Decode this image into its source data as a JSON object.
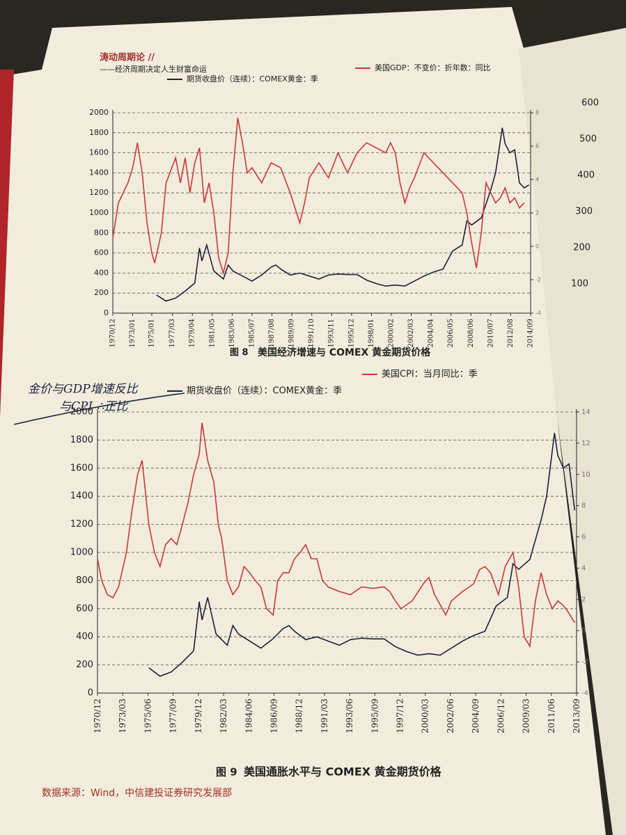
{
  "header": {
    "title": "涛动周期论 //",
    "subtitle": "——经济周期决定人生财富命运"
  },
  "note": {
    "line1": "金价与GDP增速反比",
    "line2": "与CPI ∴正比"
  },
  "right_page": {
    "ticks": [
      "600",
      "500",
      "400",
      "300",
      "200",
      "100"
    ]
  },
  "chart_data": [
    {
      "type": "line",
      "figure_label": "图 8",
      "title": "美国经济增速与 COMEX 黄金期货价格",
      "xlim": [
        1970.92,
        2014.67
      ],
      "xticks": [
        {
          "value": 1970.92,
          "label": "1970/12"
        },
        {
          "value": 1973.0,
          "label": "1973/01"
        },
        {
          "value": 1975.0,
          "label": "1975/01"
        },
        {
          "value": 1977.17,
          "label": "1977/03"
        },
        {
          "value": 1979.25,
          "label": "1979/04"
        },
        {
          "value": 1981.33,
          "label": "1981/05"
        },
        {
          "value": 1983.42,
          "label": "1983/06"
        },
        {
          "value": 1985.5,
          "label": "1985/07"
        },
        {
          "value": 1987.58,
          "label": "1987/08"
        },
        {
          "value": 1989.67,
          "label": "1989/09"
        },
        {
          "value": 1991.75,
          "label": "1991/10"
        },
        {
          "value": 1993.83,
          "label": "1993/11"
        },
        {
          "value": 1995.92,
          "label": "1995/12"
        },
        {
          "value": 1998.0,
          "label": "1998/01"
        },
        {
          "value": 2000.08,
          "label": "2000/02"
        },
        {
          "value": 2002.17,
          "label": "2002/03"
        },
        {
          "value": 2004.25,
          "label": "2004/04"
        },
        {
          "value": 2006.33,
          "label": "2006/05"
        },
        {
          "value": 2008.42,
          "label": "2008/06"
        },
        {
          "value": 2010.5,
          "label": "2010/07"
        },
        {
          "value": 2012.58,
          "label": "2012/08"
        },
        {
          "value": 2014.67,
          "label": "2014/09"
        }
      ],
      "ylim": [
        0,
        2000
      ],
      "yticks": [
        0,
        200,
        400,
        600,
        800,
        1000,
        1200,
        1400,
        1600,
        1800,
        2000
      ],
      "y2lim": [
        -4,
        8
      ],
      "y2ticks": [
        -4,
        -2,
        0,
        2,
        4,
        6,
        8
      ],
      "grid": true,
      "series": [
        {
          "name": "期货收盘价（连续）：COMEX黄金：季",
          "color": "#1e1f3a",
          "x": [
            1975.5,
            1976.5,
            1977.5,
            1978.5,
            1979.5,
            1980.0,
            1980.25,
            1980.75,
            1981.5,
            1982.5,
            1983.0,
            1983.5,
            1984.5,
            1985.5,
            1986.5,
            1987.5,
            1988.0,
            1988.5,
            1989.5,
            1990.5,
            1991.5,
            1992.5,
            1993.5,
            1994.5,
            1995.5,
            1996.5,
            1997.5,
            1998.5,
            1999.5,
            2000.5,
            2001.5,
            2002.5,
            2003.5,
            2004.5,
            2005.5,
            2006.5,
            2007.5,
            2008.0,
            2008.5,
            2009.5,
            2010.5,
            2011.0,
            2011.7,
            2012.0,
            2012.5,
            2013.0,
            2013.5,
            2014.0,
            2014.5
          ],
          "values": [
            180,
            120,
            150,
            220,
            300,
            650,
            520,
            680,
            420,
            340,
            480,
            420,
            370,
            320,
            380,
            460,
            480,
            440,
            380,
            400,
            370,
            340,
            380,
            390,
            385,
            385,
            330,
            295,
            270,
            280,
            270,
            320,
            370,
            410,
            440,
            620,
            680,
            920,
            880,
            950,
            1230,
            1400,
            1850,
            1690,
            1600,
            1630,
            1300,
            1250,
            1280
          ]
        },
        {
          "name": "美国GDP：不变价：折年数：同比",
          "color": "#c8383a",
          "axis": "y2",
          "x": [
            1970.92,
            1971.5,
            1972.5,
            1973.0,
            1973.5,
            1974.0,
            1974.5,
            1975.0,
            1975.3,
            1976.0,
            1976.5,
            1977.5,
            1978.0,
            1978.5,
            1979.0,
            1979.5,
            1980.0,
            1980.5,
            1981.0,
            1981.5,
            1982.0,
            1982.5,
            1983.0,
            1983.5,
            1984.0,
            1984.5,
            1985.0,
            1985.5,
            1986.5,
            1987.5,
            1988.5,
            1989.5,
            1990.5,
            1991.0,
            1991.5,
            1992.5,
            1993.5,
            1994.5,
            1995.5,
            1996.5,
            1997.5,
            1998.5,
            1999.5,
            2000.0,
            2000.5,
            2001.0,
            2001.5,
            2002.0,
            2002.5,
            2003.5,
            2004.0,
            2004.5,
            2005.5,
            2006.5,
            2007.5,
            2008.0,
            2008.5,
            2009.0,
            2009.5,
            2010.0,
            2010.5,
            2011.0,
            2011.5,
            2012.0,
            2012.5,
            2013.0,
            2013.5,
            2014.0
          ],
          "values": [
            0.5,
            2.6,
            3.8,
            4.7,
            6.2,
            4.4,
            1.4,
            -0.4,
            -1,
            0.8,
            3.8,
            5.3,
            3.8,
            5.3,
            3.2,
            5,
            5.9,
            2.6,
            3.8,
            2,
            -0.7,
            -1.6,
            -0.4,
            4.4,
            7.7,
            6.2,
            4.4,
            4.7,
            3.8,
            5,
            4.7,
            3.2,
            1.4,
            2.6,
            4.1,
            5,
            4.1,
            5.6,
            4.4,
            5.6,
            6.2,
            5.9,
            5.6,
            6.2,
            5.6,
            3.8,
            2.6,
            3.5,
            4.1,
            5.6,
            5.3,
            5,
            4.4,
            3.8,
            3.2,
            2,
            0.2,
            -1.3,
            0.8,
            3.8,
            3.2,
            2.6,
            2.9,
            3.5,
            2.6,
            2.9,
            2.3,
            2.6
          ]
        }
      ]
    },
    {
      "type": "line",
      "figure_label": "图 9",
      "title": "美国通胀水平与 COMEX 黄金期货价格",
      "xlim": [
        1970.92,
        2013.67
      ],
      "xticks": [
        {
          "value": 1970.92,
          "label": "1970/12"
        },
        {
          "value": 1973.17,
          "label": "1973/03"
        },
        {
          "value": 1975.42,
          "label": "1975/06"
        },
        {
          "value": 1977.67,
          "label": "1977/09"
        },
        {
          "value": 1979.92,
          "label": "1979/12"
        },
        {
          "value": 1982.17,
          "label": "1982/03"
        },
        {
          "value": 1984.42,
          "label": "1984/06"
        },
        {
          "value": 1986.67,
          "label": "1986/09"
        },
        {
          "value": 1988.92,
          "label": "1988/12"
        },
        {
          "value": 1991.17,
          "label": "1991/03"
        },
        {
          "value": 1993.42,
          "label": "1993/06"
        },
        {
          "value": 1995.67,
          "label": "1995/09"
        },
        {
          "value": 1997.92,
          "label": "1997/12"
        },
        {
          "value": 2000.17,
          "label": "2000/03"
        },
        {
          "value": 2002.42,
          "label": "2002/06"
        },
        {
          "value": 2004.67,
          "label": "2004/09"
        },
        {
          "value": 2006.92,
          "label": "2006/12"
        },
        {
          "value": 2009.17,
          "label": "2009/03"
        },
        {
          "value": 2011.42,
          "label": "2011/06"
        },
        {
          "value": 2013.67,
          "label": "2013/09"
        }
      ],
      "ylim": [
        0,
        2000
      ],
      "yticks": [
        0,
        200,
        400,
        600,
        800,
        1000,
        1200,
        1400,
        1600,
        1800,
        2000
      ],
      "y2lim": [
        -4,
        14
      ],
      "y2ticks": [
        -4,
        -2,
        0,
        2,
        4,
        6,
        8,
        10,
        12,
        14
      ],
      "grid": true,
      "series": [
        {
          "name": "期货收盘价（连续）：COMEX黄金：季",
          "color": "#1e1f3a",
          "x": [
            1975.5,
            1976.5,
            1977.5,
            1978.5,
            1979.5,
            1980.0,
            1980.25,
            1980.75,
            1981.5,
            1982.5,
            1983.0,
            1983.5,
            1984.5,
            1985.5,
            1986.5,
            1987.5,
            1988.0,
            1988.5,
            1989.5,
            1990.5,
            1991.5,
            1992.5,
            1993.5,
            1994.5,
            1995.5,
            1996.5,
            1997.5,
            1998.5,
            1999.5,
            2000.5,
            2001.5,
            2002.5,
            2003.5,
            2004.5,
            2005.5,
            2006.5,
            2007.5,
            2008.0,
            2008.5,
            2009.5,
            2010.5,
            2011.0,
            2011.7,
            2012.0,
            2012.5,
            2013.0,
            2013.5
          ],
          "values": [
            180,
            120,
            150,
            220,
            300,
            650,
            520,
            680,
            420,
            340,
            480,
            420,
            370,
            320,
            380,
            460,
            480,
            440,
            380,
            400,
            370,
            340,
            380,
            390,
            385,
            385,
            330,
            295,
            270,
            280,
            270,
            320,
            370,
            410,
            440,
            620,
            680,
            920,
            880,
            950,
            1230,
            1400,
            1850,
            1690,
            1600,
            1630,
            1300
          ]
        },
        {
          "name": "美国CPI：当月同比：季",
          "color": "#c8383a",
          "axis": "y2",
          "x": [
            1970.92,
            1971.3,
            1971.8,
            1972.3,
            1972.8,
            1973.5,
            1974.0,
            1974.5,
            1974.9,
            1975.5,
            1976.0,
            1976.5,
            1977.0,
            1977.5,
            1978.0,
            1978.5,
            1979.0,
            1979.5,
            1980.0,
            1980.25,
            1980.75,
            1981.3,
            1981.7,
            1982.0,
            1982.5,
            1983.0,
            1983.5,
            1984.0,
            1984.5,
            1985.0,
            1985.5,
            1986.0,
            1986.6,
            1987.0,
            1987.5,
            1988.0,
            1988.5,
            1989.0,
            1989.5,
            1990.0,
            1990.5,
            1991.0,
            1991.5,
            1992.5,
            1993.5,
            1994.5,
            1995.5,
            1996.5,
            1997.0,
            1997.5,
            1998.0,
            1999.0,
            2000.0,
            2000.5,
            2001.0,
            2002.0,
            2002.5,
            2003.5,
            2004.5,
            2005.0,
            2005.5,
            2006.0,
            2006.7,
            2007.3,
            2008.0,
            2008.5,
            2009.0,
            2009.5,
            2010.0,
            2010.5,
            2011.0,
            2011.5,
            2012.0,
            2012.5,
            2013.0,
            2013.5
          ],
          "values": [
            4.6,
            3.2,
            2.3,
            2.1,
            2.8,
            5,
            7.7,
            10,
            10.9,
            6.8,
            5,
            4.1,
            5.5,
            5.9,
            5.5,
            6.8,
            8.2,
            10,
            11.3,
            13.3,
            10.9,
            9.5,
            6.8,
            5.9,
            3.2,
            2.3,
            2.8,
            4.1,
            3.7,
            3.2,
            2.8,
            1.4,
            1,
            3.2,
            3.7,
            3.7,
            4.6,
            5,
            5.5,
            4.6,
            4.6,
            3.2,
            2.8,
            2.5,
            2.3,
            2.8,
            2.7,
            2.8,
            2.5,
            1.9,
            1.4,
            1.9,
            3,
            3.4,
            2.3,
            1,
            1.9,
            2.5,
            3,
            3.9,
            4.1,
            3.7,
            2.3,
            4.1,
            5,
            2.8,
            -0.4,
            -1,
            1.9,
            3.7,
            2.3,
            1.4,
            1.9,
            1.6,
            1.1,
            0.5
          ]
        }
      ]
    }
  ],
  "source": "数据来源：Wind，中信建投证券研究发展部"
}
